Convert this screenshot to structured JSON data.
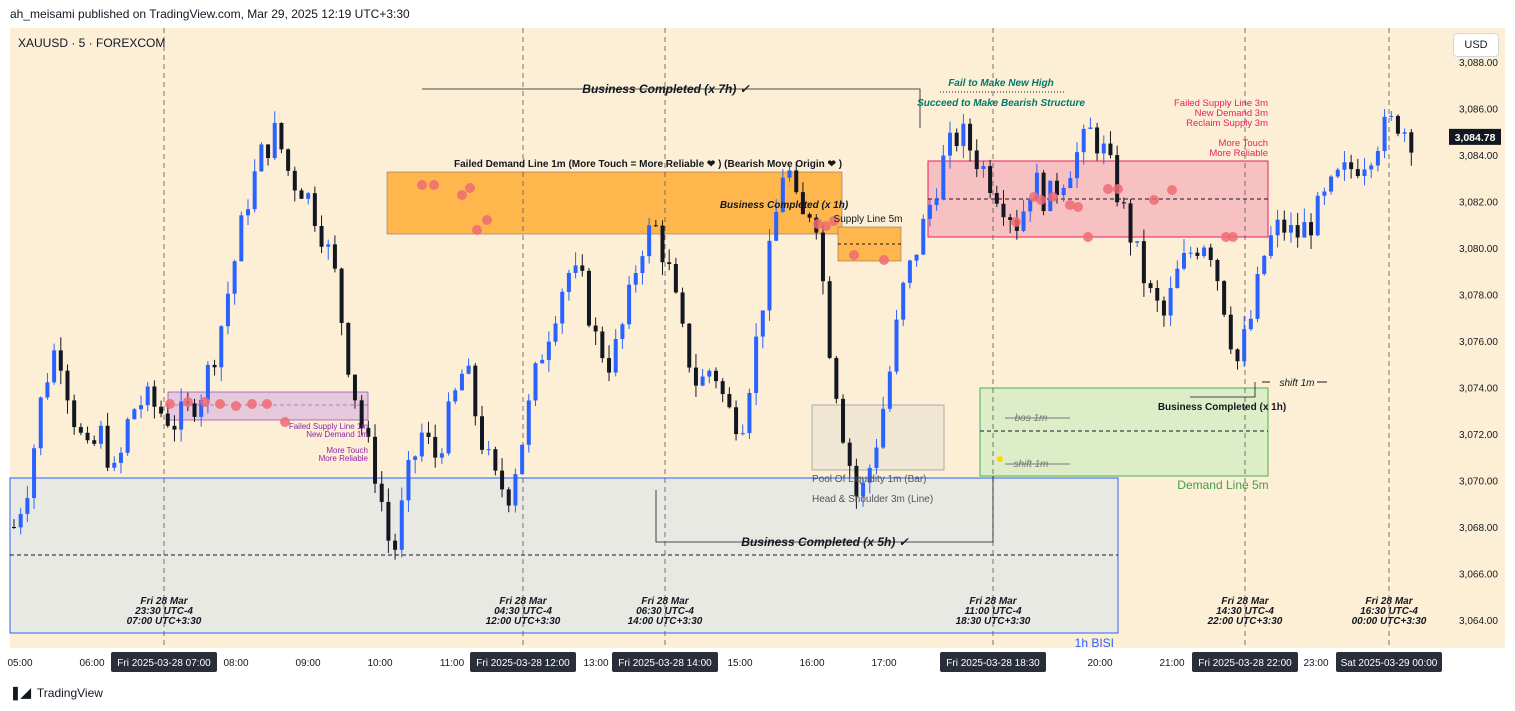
{
  "header": {
    "publisher": "ah_meisami published on TradingView.com, Mar 29, 2025 12:19 UTC+3:30"
  },
  "symbol": "XAUUSD · 5 · FOREXCOM",
  "usd_label": "USD",
  "footer": {
    "logo_icon": "tradingview-logo-icon",
    "brand": "TradingView"
  },
  "colors": {
    "background": "#fcefd6",
    "up": "#2962ff",
    "down": "#131722",
    "orange_zone": "#ffb74d",
    "red_zone": "#f8c1c1",
    "green_zone": "#dcedc8",
    "bisi_zone": "#e9e9e4"
  },
  "chart_data": {
    "type": "candlestick",
    "ylim": [
      3063,
      3089
    ],
    "y_ticks": [
      "3,064.00",
      "3,066.00",
      "3,068.00",
      "3,070.00",
      "3,072.00",
      "3,074.00",
      "3,076.00",
      "3,078.00",
      "3,080.00",
      "3,082.00",
      "3,084.00",
      "3,086.00",
      "3,088.00"
    ],
    "last_price": "3,084.78",
    "x_labels": [
      "05:00",
      "06:00",
      "08:00",
      "09:00",
      "10:00",
      "11:00",
      "13:00",
      "15:00",
      "16:00",
      "17:00",
      "20:00",
      "21:00",
      "23:00"
    ],
    "x_highlight": [
      "Fri 2025-03-28   07:00",
      "Fri 2025-03-28   12:00",
      "Fri 2025-03-28   14:00",
      "Fri 2025-03-28   18:30",
      "Fri 2025-03-28   22:00",
      "Sat 2025-03-29   00:00"
    ],
    "session_markers": [
      {
        "line1": "Fri 28 Mar",
        "line2": "23:30 UTC-4",
        "line3": "07:00 UTC+3:30"
      },
      {
        "line1": "Fri 28 Mar",
        "line2": "04:30 UTC-4",
        "line3": "12:00 UTC+3:30"
      },
      {
        "line1": "Fri 28 Mar",
        "line2": "06:30 UTC-4",
        "line3": "14:00 UTC+3:30"
      },
      {
        "line1": "Fri 28 Mar",
        "line2": "11:00 UTC-4",
        "line3": "18:30 UTC+3:30"
      },
      {
        "line1": "Fri 28 Mar",
        "line2": "14:30 UTC-4",
        "line3": "22:00 UTC+3:30"
      },
      {
        "line1": "Fri 28 Mar",
        "line2": "16:30 UTC-4",
        "line3": "00:00 UTC+3:30"
      }
    ],
    "price_path": [
      3068,
      3070,
      3074,
      3076,
      3073,
      3071,
      3072,
      3070,
      3073,
      3073.5,
      3073,
      3072.5,
      3073,
      3074,
      3076,
      3079,
      3082,
      3084,
      3085,
      3083,
      3082.5,
      3081,
      3079,
      3075,
      3072,
      3070,
      3066.5,
      3070,
      3072,
      3071,
      3073,
      3075,
      3072,
      3070,
      3069.5,
      3072,
      3075,
      3077,
      3079,
      3078.5,
      3076,
      3075,
      3077,
      3080,
      3081,
      3079,
      3076,
      3074,
      3075,
      3073,
      3072.5,
      3076,
      3080,
      3084,
      3081,
      3082,
      3076,
      3072,
      3069,
      3071,
      3074,
      3078,
      3080,
      3082,
      3084,
      3085,
      3084,
      3083,
      3082,
      3081,
      3083,
      3082,
      3083,
      3084,
      3085,
      3084,
      3082,
      3080,
      3078,
      3077,
      3079,
      3080,
      3080.5,
      3078,
      3075,
      3077,
      3080,
      3081,
      3080.5,
      3081,
      3082,
      3083,
      3083.5,
      3084,
      3085,
      3085.5,
      3084.8
    ],
    "zones": [
      {
        "name": "failed-demand-zone",
        "label": "Failed Demand Line 1m (More Touch = More Reliable ❤ ) (Bearish Move Origin ❤ )"
      },
      {
        "name": "supply-5m-zone",
        "label": "Supply Line 5m"
      },
      {
        "name": "red-supply-zone",
        "label_lines": [
          "Failed Supply Line 3m",
          "New Demand 3m",
          "Reclaim Supply 3m"
        ],
        "label2_lines": [
          "More Touch",
          "More Reliable"
        ]
      },
      {
        "name": "pink-small-zone",
        "label_lines": [
          "Failed Supply Line 1m",
          "New Demand 1m"
        ],
        "label2_lines": [
          "More Touch",
          "More Reliable"
        ]
      },
      {
        "name": "pool-liquidity-zone",
        "label_lines": [
          "Pool Of Liquidity 1m (Bar)",
          "Head & Shoulder 3m (Line)"
        ]
      },
      {
        "name": "demand-5m-zone",
        "label": "Demand Line 5m"
      },
      {
        "name": "bisi-zone",
        "label": "1h BISI"
      }
    ],
    "annotations": [
      {
        "name": "business-7h",
        "text": "Business Completed (x 7h) ✓"
      },
      {
        "name": "business-5h",
        "text": "Business Completed (x 5h) ✓"
      },
      {
        "name": "business-1h-a",
        "text": "Business Completed (x 1h)"
      },
      {
        "name": "business-1h-b",
        "text": "Business Completed (x 1h)"
      },
      {
        "name": "fail-new-high",
        "text": "Fail to Make New High"
      },
      {
        "name": "succeed-bearish",
        "text": "Succeed to Make Bearish Structure"
      },
      {
        "name": "bos-1m",
        "text": "bos 1m"
      },
      {
        "name": "shift-1m-a",
        "text": "shift 1m"
      },
      {
        "name": "shift-1m-b",
        "text": "shift 1m"
      }
    ]
  }
}
